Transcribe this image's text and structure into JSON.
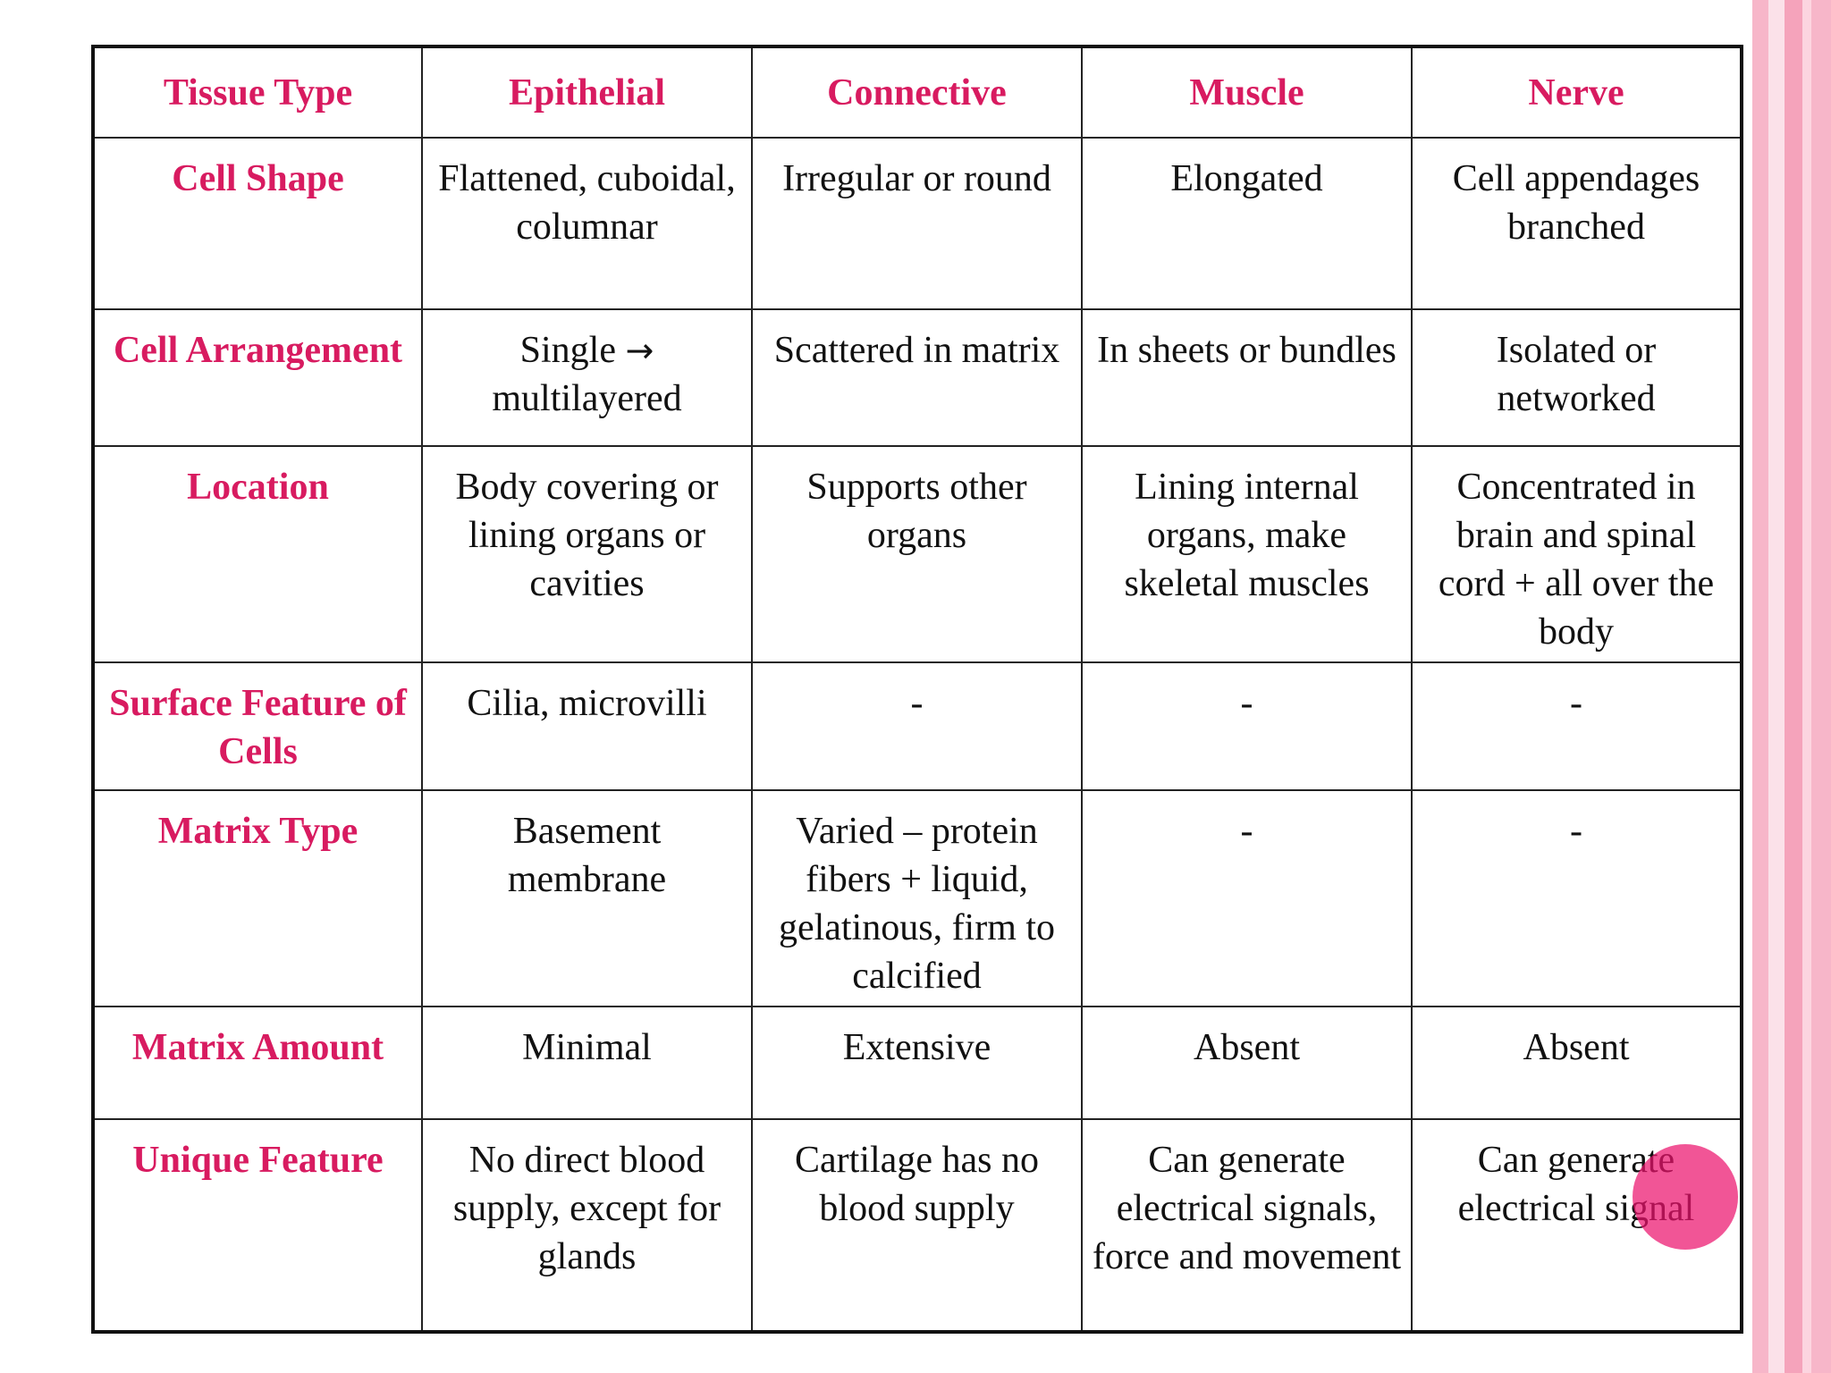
{
  "colors": {
    "header_text": "#d81b60",
    "body_text": "#111111",
    "stripe_pink": "#f7b6c9",
    "pointer": "#ec146e"
  },
  "pointer_icon": "laser-pointer-dot",
  "table": {
    "corner": "Tissue Type",
    "columns": [
      "Epithelial",
      "Connective",
      "Muscle",
      "Nerve"
    ],
    "rows": [
      {
        "label": "Cell Shape",
        "cells": [
          "Flattened, cuboidal, columnar",
          "Irregular or round",
          "Elongated",
          "Cell appendages branched"
        ]
      },
      {
        "label": "Cell Arrangement",
        "cells": [
          "Single",
          "Scattered in matrix",
          "In sheets or bundles",
          "Isolated or networked"
        ],
        "epithelial_arrow": "→",
        "epithelial_after": "multilayered"
      },
      {
        "label": "Location",
        "cells": [
          "Body covering or lining organs or cavities",
          "Supports other organs",
          "Lining internal organs, make skeletal muscles",
          "Concentrated in brain and spinal cord + all over the body"
        ]
      },
      {
        "label": "Surface Feature of Cells",
        "cells": [
          "Cilia, microvilli",
          "-",
          "-",
          "-"
        ]
      },
      {
        "label": "Matrix Type",
        "cells": [
          "Basement membrane",
          "Varied – protein fibers + liquid, gelatinous, firm to calcified",
          "-",
          "-"
        ]
      },
      {
        "label": "Matrix Amount",
        "cells": [
          "Minimal",
          "Extensive",
          "Absent",
          "Absent"
        ]
      },
      {
        "label": "Unique Feature",
        "cells": [
          "No direct blood supply, except for glands",
          "Cartilage has no blood supply",
          "Can generate electrical signals, force and movement",
          "Can generate electrical signal"
        ]
      }
    ]
  }
}
